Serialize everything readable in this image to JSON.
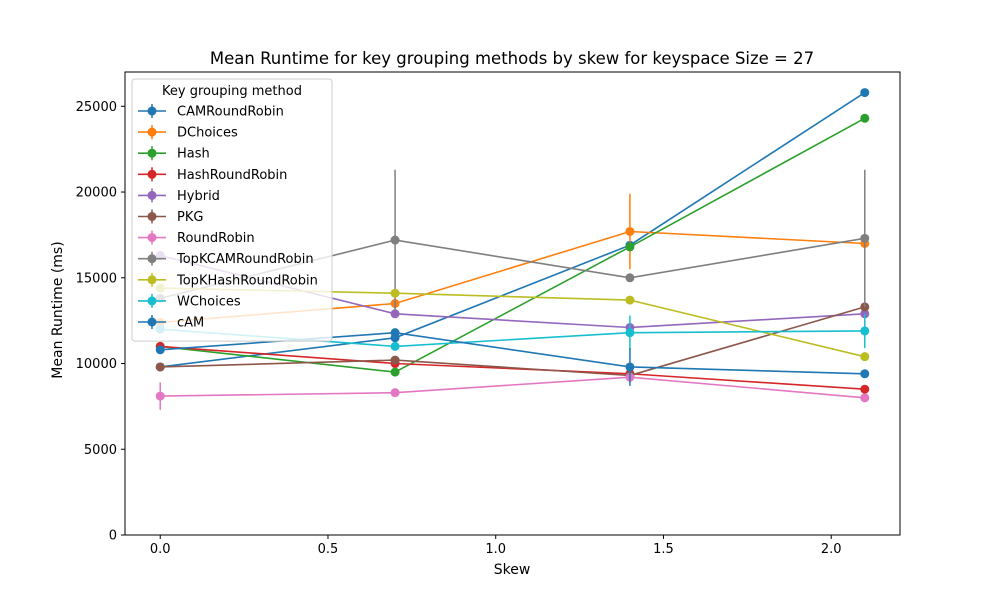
{
  "chart_data": {
    "type": "line",
    "title": "Mean Runtime for key grouping methods by skew for keyspace Size = 27",
    "xlabel": "Skew",
    "ylabel": "Mean Runtime (ms)",
    "xlim": [
      -0.105,
      2.205
    ],
    "ylim": [
      0,
      27000
    ],
    "xticks": [
      0.0,
      0.5,
      1.0,
      1.5,
      2.0
    ],
    "xtick_labels": [
      "0.0",
      "0.5",
      "1.0",
      "1.5",
      "2.0"
    ],
    "yticks": [
      0,
      5000,
      10000,
      15000,
      20000,
      25000
    ],
    "ytick_labels": [
      "0",
      "5000",
      "10000",
      "15000",
      "20000",
      "25000"
    ],
    "grid": false,
    "legend_title": "Key grouping method",
    "legend_position": "upper-left",
    "x": [
      0.0,
      0.7,
      1.4,
      2.1
    ],
    "series": [
      {
        "name": "CAMRoundRobin",
        "color": "#1f77b4",
        "values": [
          9800,
          11500,
          16900,
          25800
        ],
        "err": [
          null,
          null,
          null,
          null
        ]
      },
      {
        "name": "DChoices",
        "color": "#ff7f0e",
        "values": [
          12400,
          13500,
          17700,
          17000
        ],
        "err": [
          null,
          null,
          2200,
          null
        ]
      },
      {
        "name": "Hash",
        "color": "#2ca02c",
        "values": [
          11000,
          9500,
          16800,
          24300
        ],
        "err": [
          null,
          null,
          null,
          null
        ]
      },
      {
        "name": "HashRoundRobin",
        "color": "#d62728",
        "values": [
          11000,
          10000,
          9400,
          8500
        ],
        "err": [
          null,
          null,
          null,
          null
        ]
      },
      {
        "name": "Hybrid",
        "color": "#9467bd",
        "values": [
          16300,
          12900,
          12100,
          12900
        ],
        "err": [
          null,
          null,
          null,
          null
        ]
      },
      {
        "name": "PKG",
        "color": "#8c564b",
        "values": [
          9800,
          10200,
          9300,
          13300
        ],
        "err": [
          null,
          null,
          null,
          null
        ]
      },
      {
        "name": "RoundRobin",
        "color": "#e377c2",
        "values": [
          8100,
          8300,
          9200,
          8000
        ],
        "err": [
          800,
          null,
          null,
          null
        ]
      },
      {
        "name": "TopKCAMRoundRobin",
        "color": "#7f7f7f",
        "values": [
          13800,
          17200,
          15000,
          17300
        ],
        "err": [
          null,
          4100,
          null,
          4000
        ]
      },
      {
        "name": "TopKHashRoundRobin",
        "color": "#bcbd22",
        "values": [
          14400,
          14100,
          13700,
          10400
        ],
        "err": [
          null,
          null,
          null,
          null
        ]
      },
      {
        "name": "WChoices",
        "color": "#17becf",
        "values": [
          12000,
          11000,
          11800,
          11900
        ],
        "err": [
          null,
          null,
          1000,
          1000
        ]
      },
      {
        "name": "cAM",
        "color": "#1f77b4",
        "values": [
          10800,
          11800,
          9800,
          9400
        ],
        "err": [
          null,
          null,
          1100,
          null
        ]
      }
    ]
  }
}
